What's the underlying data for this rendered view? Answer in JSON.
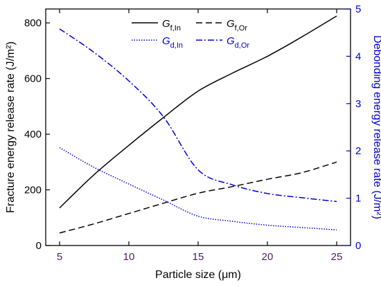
{
  "chart_data": {
    "type": "line",
    "title": "",
    "xlabel": "Particle size (μm)",
    "ylabel_left": "Fracture energy release rate (J/m²)",
    "ylabel_right": "Debonding energy release rate (J/m²)",
    "xlim": [
      4,
      26
    ],
    "ylim_left": [
      0,
      850
    ],
    "ylim_right": [
      0,
      5
    ],
    "x_ticks": [
      5,
      10,
      15,
      20,
      25
    ],
    "y_left_ticks": [
      0,
      200,
      400,
      600,
      800
    ],
    "y_right_ticks": [
      0,
      1,
      2,
      3,
      4,
      5
    ],
    "grid": false,
    "legend_position": "top",
    "series": [
      {
        "name": "Gf,In",
        "axis": "left",
        "style": "solid",
        "color": "#000000",
        "x": [
          5,
          7.5,
          10,
          12.5,
          15,
          17.5,
          20,
          22.5,
          25
        ],
        "values": [
          135,
          255,
          360,
          460,
          555,
          620,
          680,
          750,
          825
        ]
      },
      {
        "name": "Gf,Or",
        "axis": "left",
        "style": "dashed",
        "color": "#000000",
        "x": [
          5,
          7.5,
          10,
          12.5,
          15,
          17.5,
          20,
          22.5,
          25
        ],
        "values": [
          45,
          78,
          115,
          152,
          188,
          212,
          238,
          262,
          300
        ]
      },
      {
        "name": "Gd,In",
        "axis": "right",
        "style": "dotted",
        "color": "#0000cc",
        "x": [
          5,
          7.5,
          10,
          12.5,
          15,
          17.5,
          20,
          22.5,
          25
        ],
        "values": [
          2.07,
          1.65,
          1.3,
          0.96,
          0.62,
          0.51,
          0.43,
          0.38,
          0.33
        ]
      },
      {
        "name": "Gd,Or",
        "axis": "right",
        "style": "dashdot",
        "color": "#0000cc",
        "x": [
          5,
          7.5,
          10,
          12.5,
          15,
          17.5,
          20,
          22.5,
          25
        ],
        "values": [
          4.58,
          4.08,
          3.48,
          2.72,
          1.6,
          1.28,
          1.1,
          1.01,
          0.93
        ]
      }
    ],
    "legend": [
      {
        "base": "G",
        "sub": "f,In",
        "series": 0
      },
      {
        "base": "G",
        "sub": "f,Or",
        "series": 1
      },
      {
        "base": "G",
        "sub": "d,In",
        "series": 2
      },
      {
        "base": "G",
        "sub": "d,Or",
        "series": 3
      }
    ],
    "colors": {
      "left_axis": "#000000",
      "right_axis": "#0000cc",
      "x_tick_labels": "#4b1a6b"
    }
  }
}
